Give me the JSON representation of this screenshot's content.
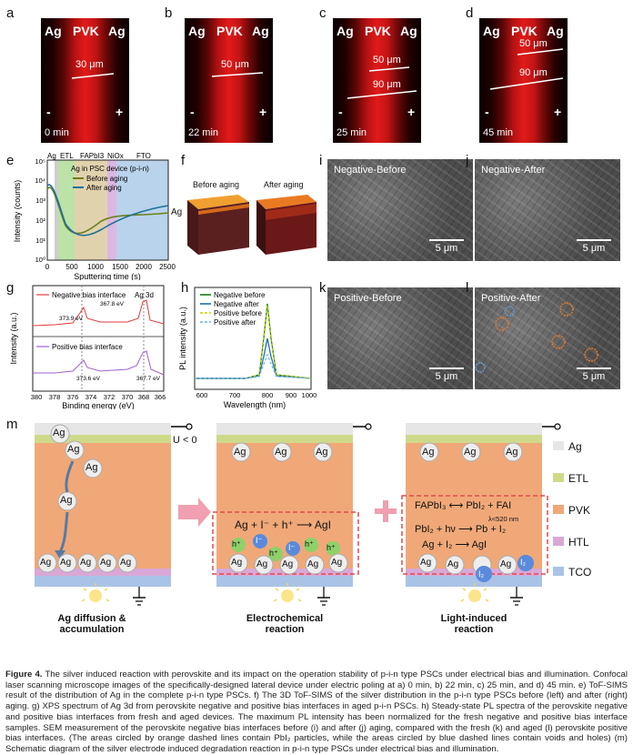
{
  "panels": {
    "a": {
      "letter": "a",
      "left": "Ag",
      "mid": "PVK",
      "right": "Ag",
      "scales": [
        "30 μm"
      ],
      "time": "0 min"
    },
    "b": {
      "letter": "b",
      "left": "Ag",
      "mid": "PVK",
      "right": "Ag",
      "scales": [
        "50 μm"
      ],
      "time": "22 min"
    },
    "c": {
      "letter": "c",
      "left": "Ag",
      "mid": "PVK",
      "right": "Ag",
      "scales": [
        "50 μm",
        "90 μm"
      ],
      "time": "25 min"
    },
    "d": {
      "letter": "d",
      "left": "Ag",
      "mid": "PVK",
      "right": "Ag",
      "scales": [
        "50 μm",
        "90 μm"
      ],
      "time": "45 min"
    },
    "minus": "-",
    "plus": "+"
  },
  "panel_e": {
    "letter": "e",
    "regions": [
      "Ag",
      "ETL",
      "FAPbI3",
      "NiOx",
      "FTO"
    ],
    "legend_title": "Ag in PSC device (p-i-n)",
    "legend": [
      "Before aging",
      "After aging"
    ],
    "xlabel": "Sputtering time (s)",
    "ylabel": "Intensity (counts)",
    "xticks": [
      "0",
      "500",
      "1000",
      "1500",
      "2000",
      "2500"
    ],
    "yticks": [
      "10⁰",
      "10¹",
      "10²",
      "10³",
      "10⁴",
      "10⁵"
    ]
  },
  "panel_f": {
    "letter": "f",
    "before": "Before aging",
    "after": "After aging",
    "side": "Ag"
  },
  "panel_g": {
    "letter": "g",
    "top_label": "Negative bias interface",
    "bot_label": "Positive bias interface",
    "peak_label": "Ag 3d",
    "top_peaks": [
      "373.9 eV",
      "367.8 eV"
    ],
    "bot_peaks": [
      "373.6 eV",
      "367.7 eV"
    ],
    "xlabel": "Binding energy (eV)",
    "ylabel": "Intensity (a.u.)",
    "xticks": [
      "380",
      "378",
      "376",
      "374",
      "372",
      "370",
      "368",
      "366"
    ]
  },
  "panel_h": {
    "letter": "h",
    "legend": [
      "Negative before",
      "Negative after",
      "Positive before",
      "Positive after"
    ],
    "xlabel": "Wavelength (nm)",
    "ylabel": "PL intensity (a.u.)",
    "xticks": [
      "600",
      "700",
      "800",
      "900",
      "1000"
    ]
  },
  "sem": {
    "i": {
      "letter": "i",
      "caption": "Negative-Before",
      "scale": "5 μm"
    },
    "j": {
      "letter": "j",
      "caption": "Negative-After",
      "scale": "5 μm"
    },
    "k": {
      "letter": "k",
      "caption": "Positive-Before",
      "scale": "5 μm"
    },
    "l": {
      "letter": "l",
      "caption": "Positive-After",
      "scale": "5 μm"
    }
  },
  "panel_m": {
    "letter": "m",
    "bias": "U < 0",
    "ag": "Ag",
    "eq1": "Ag + I⁻ + h⁺ ⟶ AgI",
    "hplus": "h⁺",
    "iminus": "I⁻",
    "eq_light_1": "FAPbI₃ ⟷ PbI₂ + FAI",
    "eq_light_2": "PbI₂ + hν ⟶ Pb + I₂",
    "eq_light_cond": "λ<520 nm",
    "eq_light_3": "Ag + I₂ ⟶ AgI",
    "i2": "I₂",
    "titles": [
      "Ag diffusion & accumulation",
      "Electrochemical reaction",
      "Light-induced reaction"
    ],
    "legend": [
      "Ag",
      "ETL",
      "PVK",
      "HTL",
      "TCO"
    ]
  },
  "caption": {
    "lead": "Figure 4.",
    "text": "The silver induced reaction with perovskite and its impact on the operation stability of p-i-n type PSCs under electrical bias and illumination. Confocal laser scanning microscope images of the specifically-designed lateral device under electric poling at a) 0 min, b) 22 min, c) 25 min, and d) 45 min. e) ToF-SIMS result of the distribution of Ag in the complete p-i-n type PSCs. f) The 3D ToF-SIMS of the silver distribution in the p-i-n type PSCs before (left) and after (right) aging. g) XPS spectrum of Ag 3d from perovskite negative and positive bias interfaces in aged p-i-n PSCs. h) Steady-state PL spectra of the perovskite negative and positive bias interfaces from fresh and aged devices. The maximum PL intensity has been normalized for the fresh negative and positive bias interface samples. SEM measurement of the perovskite negative bias interfaces before (i) and after (j) aging, compared with the fresh (k) and aged (l) perovskite positive bias interfaces. (The areas circled by orange dashed lines contain PbI₂ particles, while the areas circled by blue dashed lines contain voids and holes) (m) Schematic diagram of the silver electrode induced degradation reaction in p-i-n type PSCs under electrical bias and illumination."
  },
  "colors": {
    "ag": "#e6e6e6",
    "etl": "#cfd98a",
    "pvk": "#f0a878",
    "htl": "#d9a8d6",
    "tco": "#a9c3e6",
    "arrow": "#f0a0b0",
    "green": "#2f7d2f",
    "blue": "#2a6fb5",
    "red": "#e23a3a",
    "purple": "#a060d0"
  }
}
